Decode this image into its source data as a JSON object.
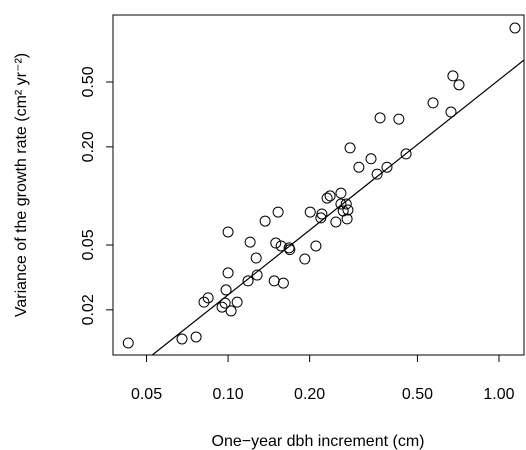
{
  "chart_data": {
    "type": "scatter",
    "xlabel": "One−year dbh increment (cm)",
    "ylabel": "Variance of the growth rate (cm² yr⁻²)",
    "log_x": true,
    "log_y": true,
    "xlim": [
      0.0376,
      1.237
    ],
    "ylim": [
      0.01057,
      1.288
    ],
    "xticks": [
      0.05,
      {
        "value": 0.1,
        "label": "0.10"
      },
      {
        "value": 0.2,
        "label": "0.20"
      },
      {
        "value": 0.5,
        "label": "0.50"
      },
      {
        "value": 1,
        "label": "1.00"
      }
    ],
    "yticks": [
      0.02,
      0.05,
      {
        "value": 0.2,
        "label": "0.20"
      },
      {
        "value": 0.5,
        "label": "0.50"
      }
    ],
    "color": "#000000",
    "x": [
      0.0428,
      0.0676,
      0.0762,
      0.0815,
      0.0844,
      0.095,
      0.0975,
      0.1026,
      0.108,
      0.0983,
      0.1,
      0.1,
      0.1185,
      0.128,
      0.127,
      0.1206,
      0.137,
      0.148,
      0.16,
      0.15,
      0.153,
      0.157,
      0.168,
      0.169,
      0.192,
      0.211,
      0.201,
      0.22,
      0.222,
      0.232,
      0.238,
      0.25,
      0.261,
      0.266,
      0.275,
      0.273,
      0.277,
      0.261,
      0.282,
      0.304,
      0.337,
      0.355,
      0.386,
      0.364,
      0.427,
      0.454,
      0.571,
      0.665,
      0.676,
      0.712,
      1.146
    ],
    "values": [
      0.01253,
      0.01325,
      0.01364,
      0.0223,
      0.0237,
      0.0208,
      0.022,
      0.0197,
      0.0223,
      0.0265,
      0.0337,
      0.0601,
      0.0301,
      0.0327,
      0.0416,
      0.0521,
      0.0701,
      0.0301,
      0.0292,
      0.0514,
      0.0796,
      0.0493,
      0.048,
      0.0468,
      0.041,
      0.0493,
      0.0796,
      0.0733,
      0.0775,
      0.097,
      0.1,
      0.0692,
      0.0892,
      0.0809,
      0.0723,
      0.0892,
      0.082,
      0.104,
      0.197,
      0.15,
      0.169,
      0.136,
      0.15,
      0.301,
      0.296,
      0.181,
      0.372,
      0.327,
      0.545,
      0.48,
      1.072
    ],
    "fit": {
      "x": [
        0.0525,
        1.237
      ],
      "values": [
        0.01057,
        0.682
      ]
    }
  }
}
